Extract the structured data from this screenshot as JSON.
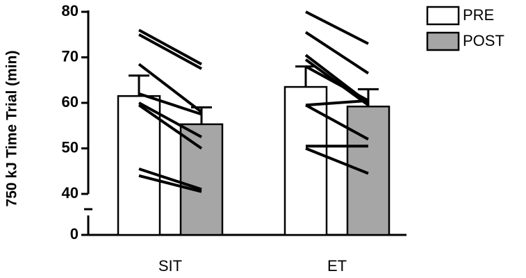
{
  "chart_data": {
    "type": "bar",
    "y_label": "750 kJ Time Trial (min)",
    "categories": [
      "SIT",
      "ET"
    ],
    "series": [
      {
        "name": "PRE",
        "color": "#ffffff",
        "values": [
          61.5,
          63.5
        ],
        "errors": [
          4.5,
          4.5
        ]
      },
      {
        "name": "POST",
        "color": "#a6a6a6",
        "values": [
          55.3,
          59.2
        ],
        "errors": [
          3.7,
          3.8
        ]
      }
    ],
    "individuals": [
      {
        "pre": [
          76,
          75,
          68.5,
          62,
          60,
          59.5,
          45.5,
          44
        ],
        "post": [
          68.5,
          67.5,
          58,
          57.5,
          52.5,
          50,
          41,
          40.5
        ]
      },
      {
        "pre": [
          80,
          75.5,
          70.5,
          69.5,
          68,
          59.5,
          59.5,
          50.5,
          50
        ],
        "post": [
          73,
          66.5,
          60,
          59.5,
          60.5,
          60.5,
          52,
          50.5,
          44.5
        ]
      }
    ],
    "ylim": [
      0,
      80
    ],
    "yticks": [
      0,
      40,
      50,
      60,
      70,
      80
    ],
    "ybreak": [
      0,
      40
    ]
  }
}
